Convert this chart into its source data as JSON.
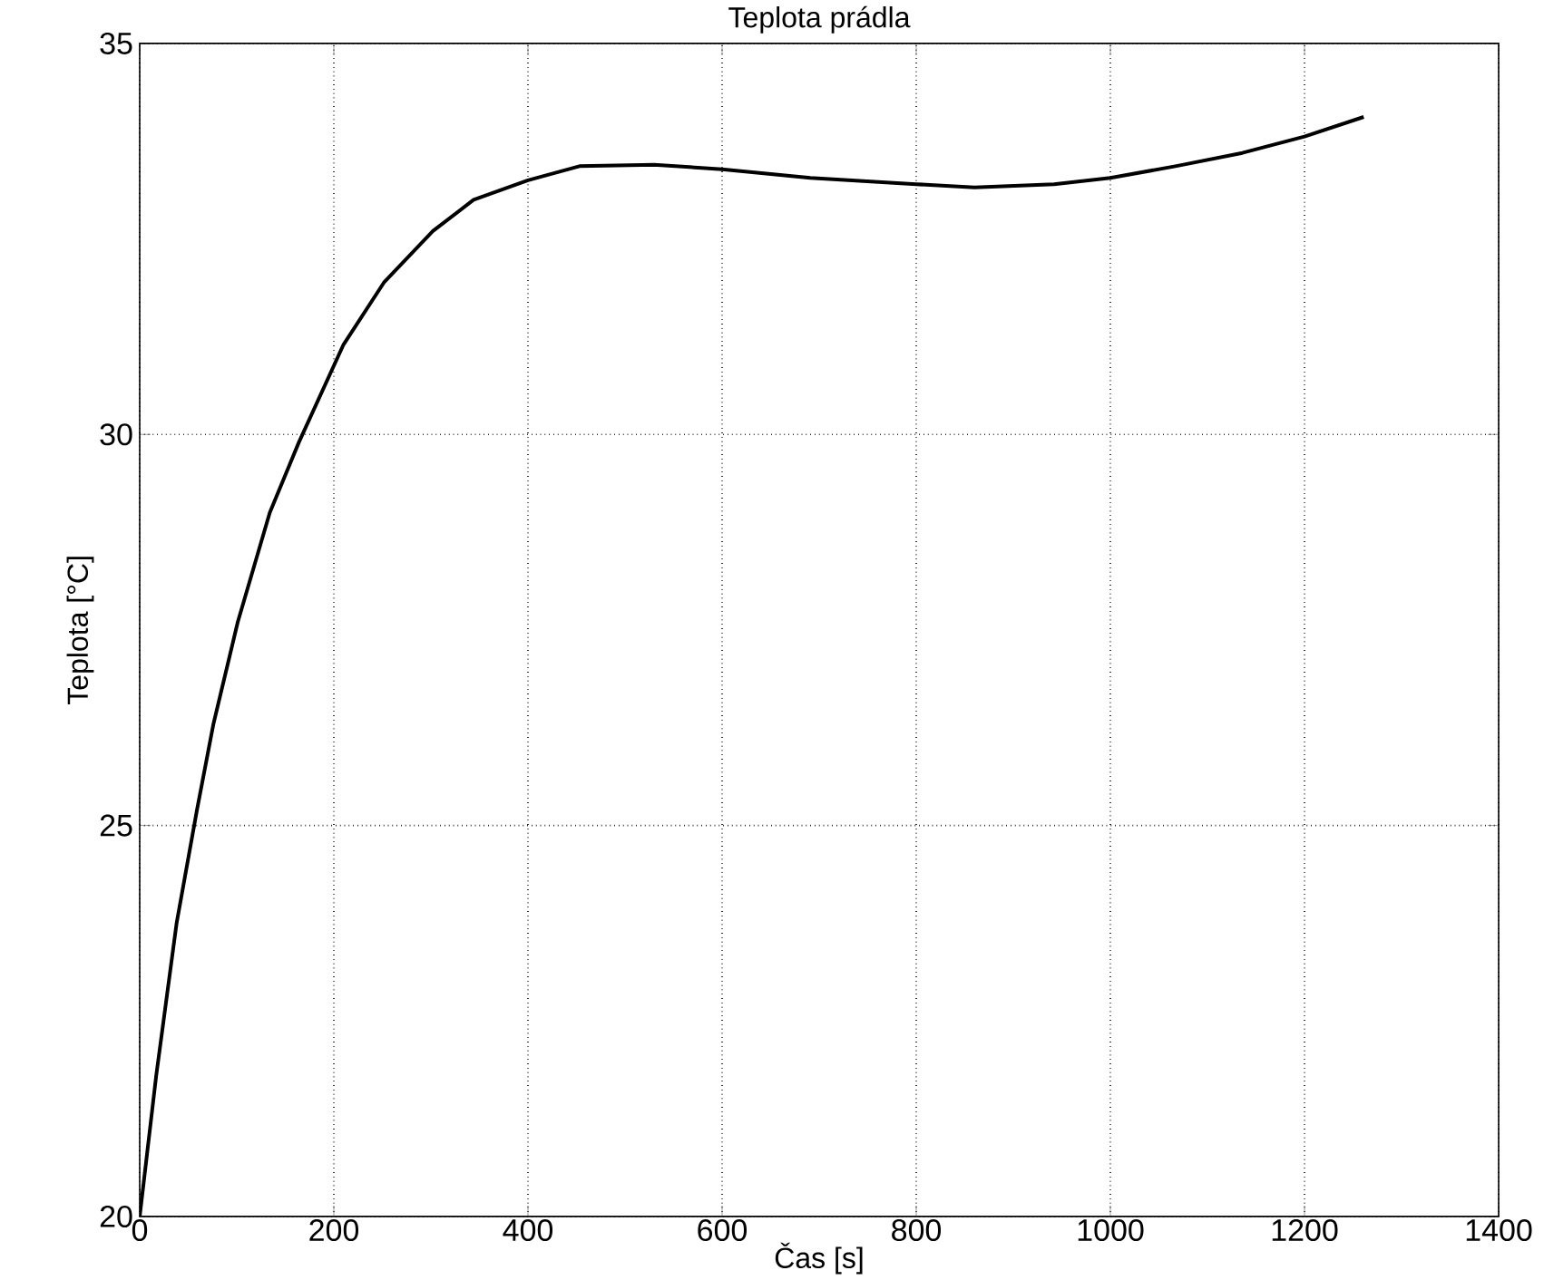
{
  "chart_data": {
    "type": "line",
    "title": "Teplota prádla",
    "xlabel": "Čas [s]",
    "ylabel": "Teplota [°C]",
    "x": [
      0,
      17,
      38,
      59,
      76,
      101,
      134,
      164,
      210,
      252,
      302,
      344,
      400,
      453,
      530,
      600,
      691,
      800,
      860,
      942,
      1000,
      1067,
      1136,
      1200,
      1261
    ],
    "series": [
      {
        "color": "#000000",
        "values": [
          20.0,
          21.8,
          23.75,
          25.2,
          26.3,
          27.6,
          29.0,
          29.9,
          31.15,
          31.95,
          32.6,
          33.0,
          33.25,
          33.43,
          33.45,
          33.39,
          33.28,
          33.2,
          33.16,
          33.2,
          33.28,
          33.43,
          33.6,
          33.81,
          34.06
        ]
      }
    ],
    "xlim": [
      0,
      1400
    ],
    "ylim": [
      20,
      35
    ],
    "xticks": [
      0,
      200,
      400,
      600,
      800,
      1000,
      1200,
      1400
    ],
    "yticks": [
      20,
      25,
      30,
      35
    ],
    "grid": true,
    "line_style": "solid",
    "marker": "none"
  }
}
